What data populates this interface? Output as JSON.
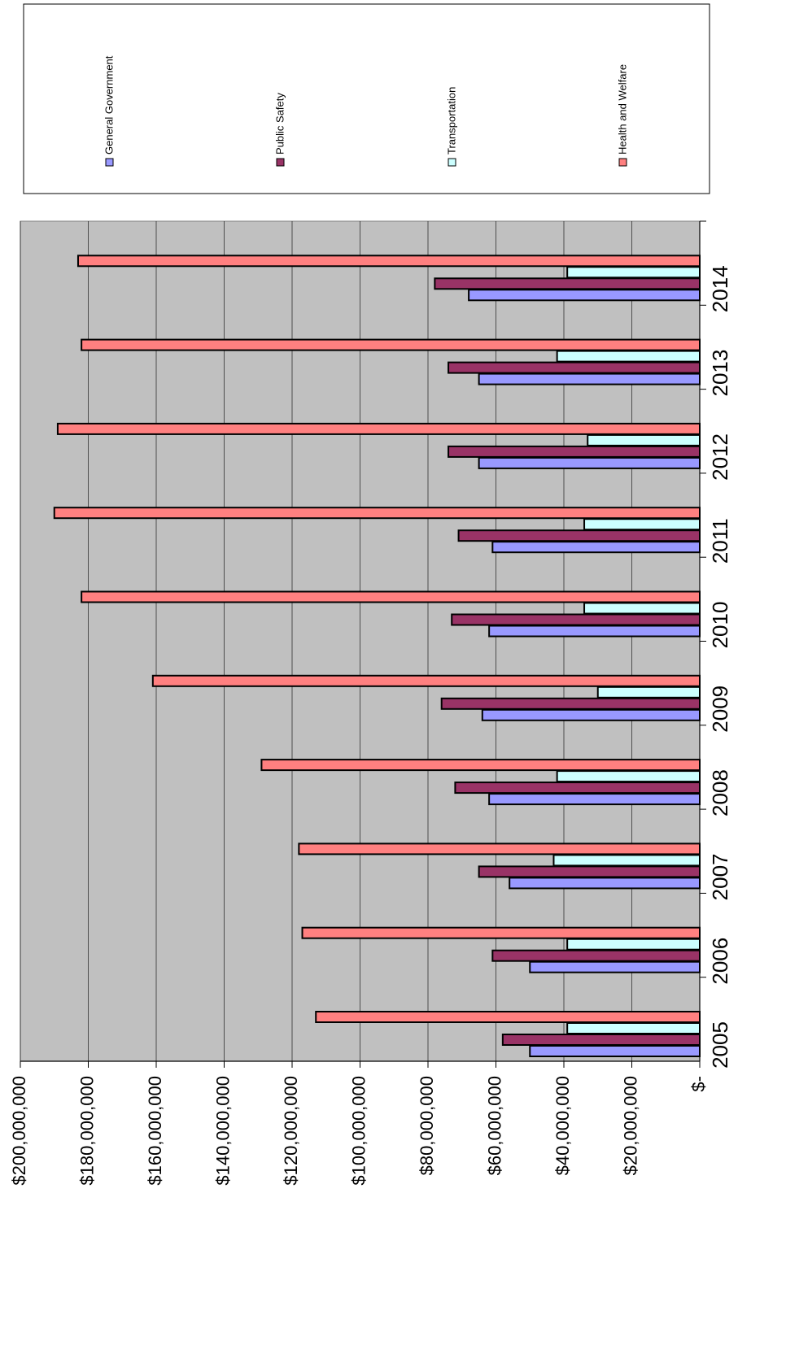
{
  "legend": {
    "entries": [
      {
        "label": "General Government",
        "color": "#9999ff"
      },
      {
        "label": "Public Safety",
        "color": "#993366"
      },
      {
        "label": "Transportation",
        "color": "#ccffff"
      },
      {
        "label": "Health and Welfare",
        "color": "#ff8080"
      }
    ]
  },
  "chart_data": {
    "type": "bar",
    "orientation": "horizontal-rotated",
    "categories": [
      "2005",
      "2006",
      "2007",
      "2008",
      "2009",
      "2010",
      "2011",
      "2012",
      "2013",
      "2014"
    ],
    "series": [
      {
        "name": "General Government",
        "color": "#9999ff",
        "values": [
          50000000,
          50000000,
          56000000,
          62000000,
          64000000,
          62000000,
          61000000,
          65000000,
          65000000,
          68000000
        ]
      },
      {
        "name": "Public Safety",
        "color": "#993366",
        "values": [
          58000000,
          61000000,
          65000000,
          72000000,
          76000000,
          73000000,
          71000000,
          74000000,
          74000000,
          78000000
        ]
      },
      {
        "name": "Transportation",
        "color": "#ccffff",
        "values": [
          39000000,
          39000000,
          43000000,
          42000000,
          30000000,
          34000000,
          34000000,
          33000000,
          42000000,
          39000000
        ]
      },
      {
        "name": "Health and Welfare",
        "color": "#ff8080",
        "values": [
          113000000,
          117000000,
          118000000,
          129000000,
          161000000,
          182000000,
          190000000,
          189000000,
          182000000,
          183000000
        ]
      }
    ],
    "value_axis": {
      "min": 0,
      "max": 200000000,
      "step": 20000000,
      "tick_labels": [
        "$-",
        "$20,000,000",
        "$40,000,000",
        "$60,000,000",
        "$80,000,000",
        "$100,000,000",
        "$120,000,000",
        "$140,000,000",
        "$160,000,000",
        "$180,000,000",
        "$200,000,000"
      ]
    },
    "grid": true,
    "legend_position": "top-right",
    "plot_background": "#c0c0c0"
  }
}
